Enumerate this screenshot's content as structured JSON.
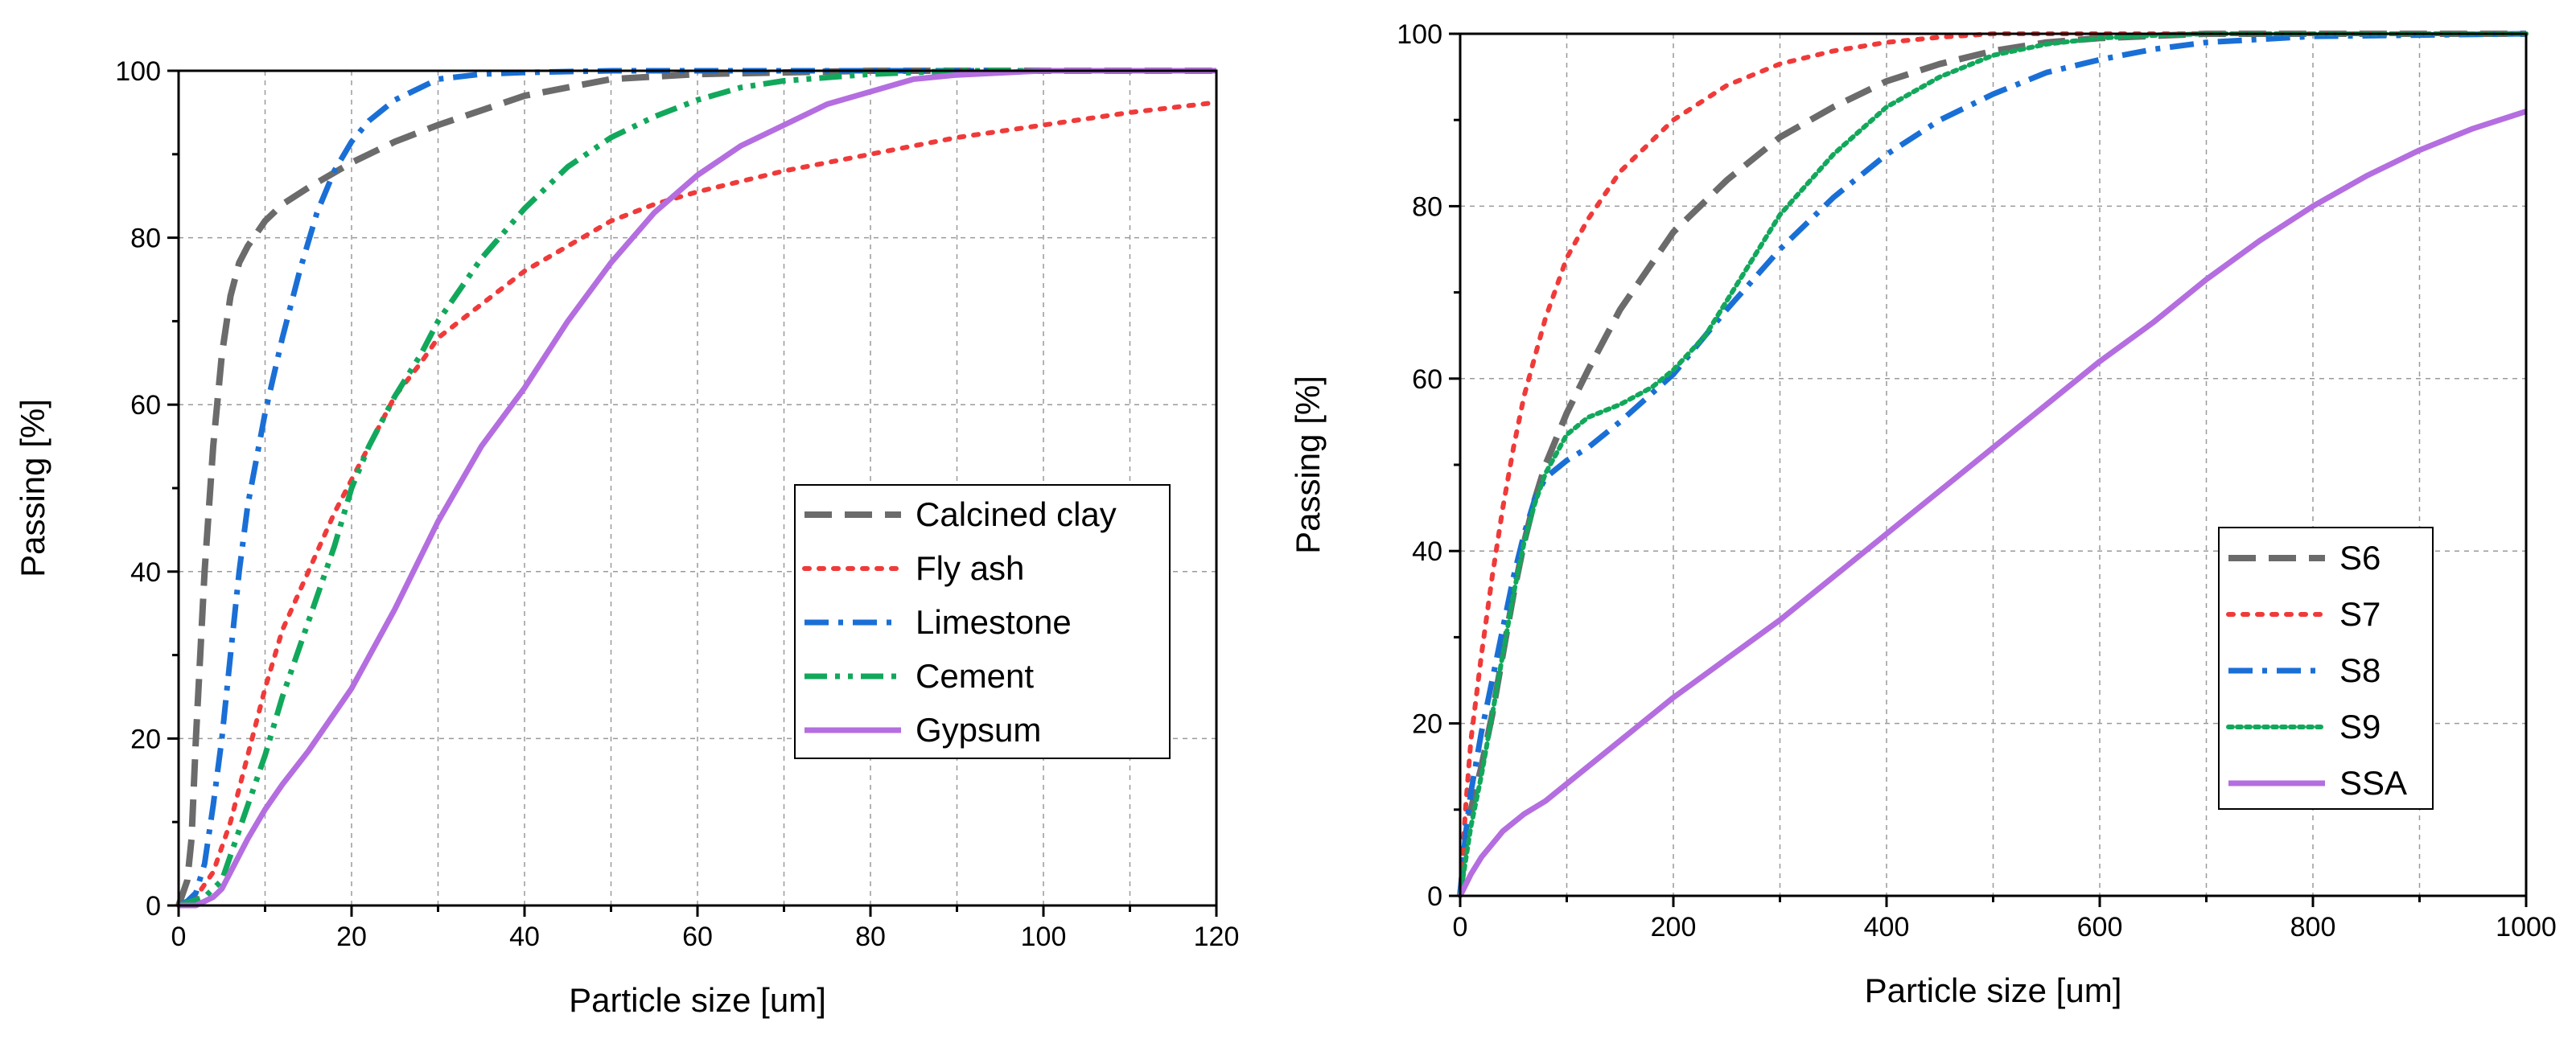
{
  "chart_data": [
    {
      "type": "line",
      "title": "",
      "xlabel": "Particle size [um]",
      "ylabel": "Passing [%]",
      "xlim": [
        0,
        120
      ],
      "ylim": [
        0,
        100
      ],
      "xticks": [
        0,
        20,
        40,
        60,
        80,
        100,
        120
      ],
      "yticks": [
        0,
        20,
        40,
        60,
        80,
        100
      ],
      "grid": true,
      "legend_position": "center-right",
      "series": [
        {
          "name": "Calcined clay",
          "color": "#6b6b6b",
          "style": "dash",
          "x": [
            0,
            1,
            1.5,
            2,
            3,
            4,
            5,
            6,
            7,
            8,
            9,
            10,
            12,
            15,
            20,
            25,
            30,
            40,
            50,
            60,
            70,
            80,
            90,
            100,
            120
          ],
          "y": [
            0,
            3,
            8,
            20,
            40,
            55,
            66,
            73,
            77,
            79,
            80.5,
            82,
            84,
            86,
            89,
            91.5,
            93.5,
            97,
            99,
            99.6,
            99.8,
            100,
            100,
            100,
            100
          ]
        },
        {
          "name": "Fly ash",
          "color": "#f03a3a",
          "style": "dot",
          "x": [
            0,
            2,
            4,
            6,
            8,
            10,
            12,
            15,
            18,
            20,
            22,
            25,
            28,
            30,
            35,
            40,
            45,
            50,
            55,
            60,
            70,
            80,
            90,
            100,
            110,
            120
          ],
          "y": [
            0,
            1,
            4,
            10,
            18,
            26,
            33,
            40,
            47,
            51,
            55,
            61,
            65,
            68,
            72,
            76,
            79,
            82,
            84,
            85.5,
            88,
            90,
            92,
            93.5,
            95,
            96.2
          ]
        },
        {
          "name": "Limestone",
          "color": "#1a6fd6",
          "style": "dashdot",
          "x": [
            0,
            1,
            2,
            3,
            4,
            5,
            6,
            7,
            8,
            10,
            12,
            14,
            16,
            18,
            20,
            22,
            25,
            28,
            30,
            35,
            40,
            50,
            60,
            80,
            100,
            120
          ],
          "y": [
            0,
            0.5,
            1.5,
            5,
            12,
            20,
            30,
            40,
            48,
            59,
            68,
            76,
            83,
            88,
            91.5,
            94,
            96.5,
            98,
            99,
            99.6,
            99.8,
            100,
            100,
            100,
            100,
            100
          ]
        },
        {
          "name": "Cement",
          "color": "#12a85c",
          "style": "dashdotdot",
          "x": [
            0,
            3,
            5,
            6,
            8,
            10,
            12,
            15,
            18,
            20,
            22,
            25,
            28,
            30,
            35,
            40,
            45,
            50,
            55,
            60,
            65,
            70,
            80,
            90,
            100,
            120
          ],
          "y": [
            0,
            1,
            3,
            6,
            12,
            18,
            25,
            34,
            43,
            50,
            55,
            61,
            66,
            70,
            77.5,
            83.5,
            88.5,
            92,
            94.5,
            96.5,
            98,
            98.8,
            99.6,
            100,
            100,
            100
          ]
        },
        {
          "name": "Gypsum",
          "color": "#b46ee0",
          "style": "solid",
          "x": [
            0,
            2,
            3,
            4,
            5,
            6,
            8,
            10,
            12,
            15,
            18,
            20,
            25,
            30,
            35,
            40,
            45,
            50,
            55,
            60,
            65,
            70,
            75,
            80,
            85,
            90,
            100,
            120
          ],
          "y": [
            0,
            0,
            0.5,
            1,
            2,
            4,
            8,
            11.5,
            14.5,
            18.5,
            23,
            26,
            35.5,
            46,
            55,
            62,
            70,
            77,
            83,
            87.5,
            91,
            93.5,
            96,
            97.5,
            99,
            99.5,
            100,
            100
          ]
        }
      ]
    },
    {
      "type": "line",
      "title": "",
      "xlabel": "Particle size [um]",
      "ylabel": "Passing [%]",
      "xlim": [
        0,
        1000
      ],
      "ylim": [
        0,
        100
      ],
      "xticks": [
        0,
        200,
        400,
        600,
        800,
        1000
      ],
      "yticks": [
        0,
        20,
        40,
        60,
        80,
        100
      ],
      "grid": true,
      "legend_position": "center-right",
      "series": [
        {
          "name": "S6",
          "color": "#6b6b6b",
          "style": "dash",
          "x": [
            0,
            5,
            10,
            20,
            30,
            40,
            50,
            60,
            70,
            80,
            100,
            120,
            150,
            200,
            250,
            300,
            350,
            400,
            450,
            500,
            550,
            600,
            700,
            800,
            1000
          ],
          "y": [
            0,
            6,
            10,
            15,
            21,
            28,
            35,
            41,
            46,
            50,
            56,
            61,
            68,
            77,
            83,
            88,
            91.5,
            94.5,
            96.5,
            98,
            99,
            99.5,
            100,
            100,
            100
          ]
        },
        {
          "name": "S7",
          "color": "#f03a3a",
          "style": "dot",
          "x": [
            0,
            5,
            10,
            20,
            30,
            40,
            50,
            60,
            80,
            100,
            120,
            150,
            200,
            250,
            300,
            350,
            400,
            450,
            500,
            600,
            1000
          ],
          "y": [
            0,
            10,
            18,
            28,
            37,
            45,
            52,
            58,
            67,
            74,
            78.5,
            84,
            90,
            94,
            96.5,
            98,
            99,
            99.6,
            100,
            100,
            100
          ]
        },
        {
          "name": "S8",
          "color": "#1a6fd6",
          "style": "dashdot",
          "x": [
            0,
            5,
            10,
            20,
            30,
            40,
            50,
            60,
            70,
            80,
            100,
            120,
            150,
            200,
            250,
            300,
            350,
            400,
            450,
            500,
            550,
            600,
            650,
            700,
            800,
            1000
          ],
          "y": [
            0,
            7,
            12,
            19,
            25,
            31,
            37,
            42,
            46,
            48.5,
            50.5,
            52,
            55,
            60.5,
            68,
            75,
            81,
            86,
            90,
            93,
            95.5,
            97,
            98.2,
            99,
            99.7,
            100
          ]
        },
        {
          "name": "S9",
          "color": "#12a85c",
          "style": "dotted",
          "x": [
            0,
            5,
            10,
            20,
            30,
            40,
            50,
            60,
            70,
            80,
            100,
            120,
            150,
            180,
            200,
            230,
            260,
            300,
            350,
            400,
            450,
            500,
            550,
            600,
            650,
            700,
            1000
          ],
          "y": [
            0,
            4,
            8,
            14,
            21,
            28,
            35,
            41,
            45.5,
            49,
            53.5,
            55.5,
            57,
            59,
            61,
            65,
            71,
            79,
            86,
            91.5,
            95,
            97.5,
            98.8,
            99.5,
            99.8,
            100,
            100
          ]
        },
        {
          "name": "SSA",
          "color": "#b46ee0",
          "style": "solid",
          "x": [
            0,
            10,
            20,
            30,
            40,
            50,
            60,
            80,
            100,
            150,
            200,
            250,
            300,
            350,
            400,
            450,
            500,
            550,
            600,
            650,
            700,
            750,
            800,
            850,
            900,
            950,
            1000
          ],
          "y": [
            0,
            2.5,
            4.5,
            6,
            7.5,
            8.5,
            9.5,
            11,
            13,
            18,
            23,
            27.5,
            32,
            37,
            42,
            47,
            52,
            57,
            62,
            66.5,
            71.5,
            76,
            80,
            83.5,
            86.5,
            89,
            91
          ]
        }
      ]
    }
  ]
}
